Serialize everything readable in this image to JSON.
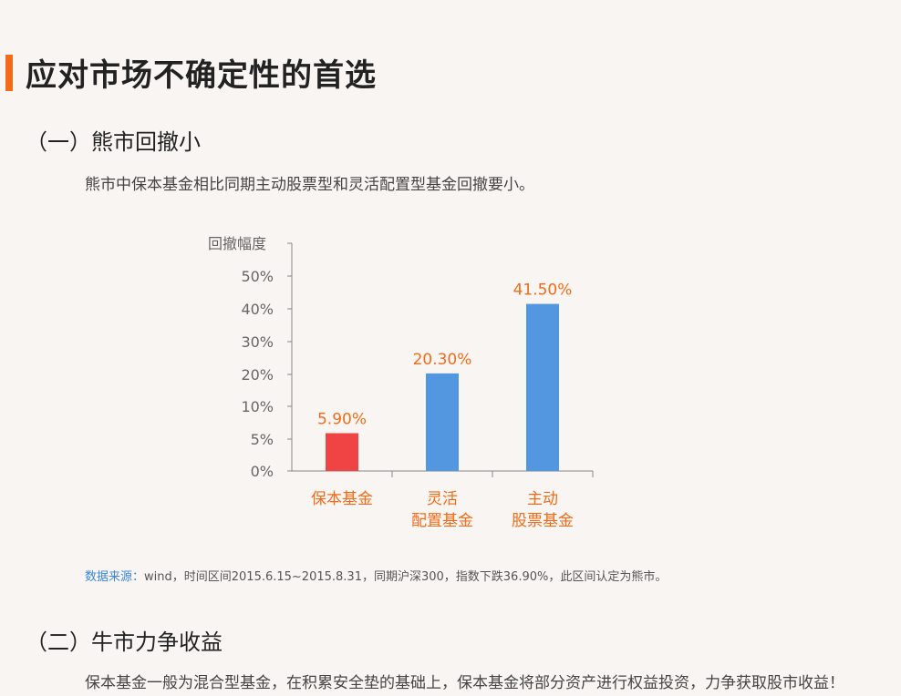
{
  "page": {
    "title": "应对市场不确定性的首选",
    "accent_color": "#f06c19"
  },
  "section1": {
    "heading": "（一）熊市回撤小",
    "text": "熊市中保本基金相比同期主动股票型和灵活配置型基金回撤要小。"
  },
  "source": {
    "label": "数据来源：",
    "text": "wind，时间区间2015.6.15~2015.8.31，同期沪深300，指数下跌36.90%，此区间认定为熊市。"
  },
  "section2": {
    "heading": "（二）牛市力争收益",
    "text": "保本基金一般为混合型基金，在积累安全垫的基础上，保本基金将部分资产进行权益投资，力争获取股市收益！"
  },
  "chart_data": {
    "type": "bar",
    "ylabel": "回撤幅度",
    "categories": [
      [
        "保本基金"
      ],
      [
        "灵活",
        "配置基金"
      ],
      [
        "主动",
        "股票基金"
      ]
    ],
    "values": [
      5.9,
      20.3,
      41.5
    ],
    "value_labels": [
      "5.90%",
      "20.30%",
      "41.50%"
    ],
    "bar_colors": [
      "#f04343",
      "#5297e0",
      "#5297e0"
    ],
    "label_color": "#f06c19",
    "y_tick_labels": [
      "0%",
      "5%",
      "10%",
      "20%",
      "30%",
      "40%",
      "50%"
    ],
    "grid": false,
    "legend": "none"
  }
}
